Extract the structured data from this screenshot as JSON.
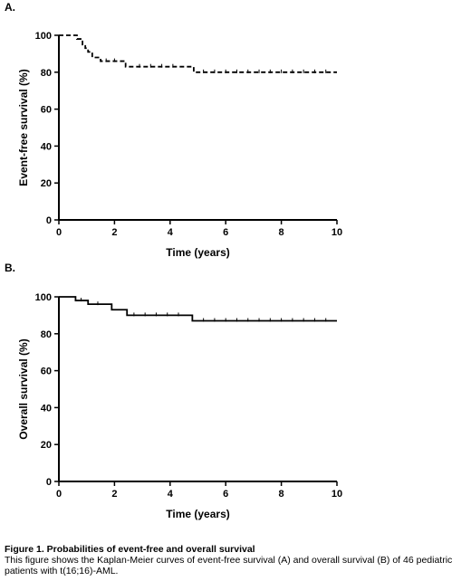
{
  "chart_data": [
    {
      "type": "line",
      "step": true,
      "panel_label": "A.",
      "xlabel": "Time (years)",
      "ylabel": "Event-free survival (%)",
      "xlim": [
        0,
        10
      ],
      "ylim": [
        0,
        100
      ],
      "x_ticks": [
        "0",
        "2",
        "4",
        "6",
        "8",
        "10"
      ],
      "y_ticks": [
        "0",
        "20",
        "40",
        "60",
        "80",
        "100"
      ],
      "line_style": "dashed",
      "grid": false,
      "series": [
        {
          "x": [
            0,
            0.65,
            0.85,
            0.95,
            1.05,
            1.2,
            1.5,
            2.4,
            4.85,
            10
          ],
          "y": [
            100,
            98,
            95,
            93,
            91,
            88,
            86,
            83,
            80,
            80
          ],
          "censored_x": [
            1.7,
            2.0,
            2.9,
            3.3,
            3.7,
            4.1,
            5.2,
            5.6,
            6.0,
            6.4,
            6.8,
            7.2,
            7.6,
            8.0,
            8.4,
            8.8,
            9.2,
            9.6
          ]
        }
      ]
    },
    {
      "type": "line",
      "step": true,
      "panel_label": "B.",
      "xlabel": "Time (years)",
      "ylabel": "Overall survival (%)",
      "xlim": [
        0,
        10
      ],
      "ylim": [
        0,
        100
      ],
      "x_ticks": [
        "0",
        "2",
        "4",
        "6",
        "8",
        "10"
      ],
      "y_ticks": [
        "0",
        "20",
        "40",
        "60",
        "80",
        "100"
      ],
      "line_style": "solid",
      "grid": false,
      "series": [
        {
          "x": [
            0,
            0.6,
            1.05,
            1.9,
            2.45,
            4.8,
            10
          ],
          "y": [
            100,
            98,
            96,
            93,
            90,
            87,
            87
          ],
          "censored_x": [
            0.8,
            1.4,
            2.7,
            3.1,
            3.5,
            3.9,
            4.3,
            5.2,
            5.6,
            6.0,
            6.4,
            6.8,
            7.2,
            7.6,
            8.0,
            8.4,
            8.8,
            9.2,
            9.6
          ]
        }
      ]
    }
  ],
  "caption": {
    "title": "Figure 1. Probabilities of event-free and overall survival",
    "text": "This figure shows the Kaplan-Meier curves of event-free survival (A) and overall survival (B) of 46 pediatric patients with t(16;16)-AML."
  }
}
